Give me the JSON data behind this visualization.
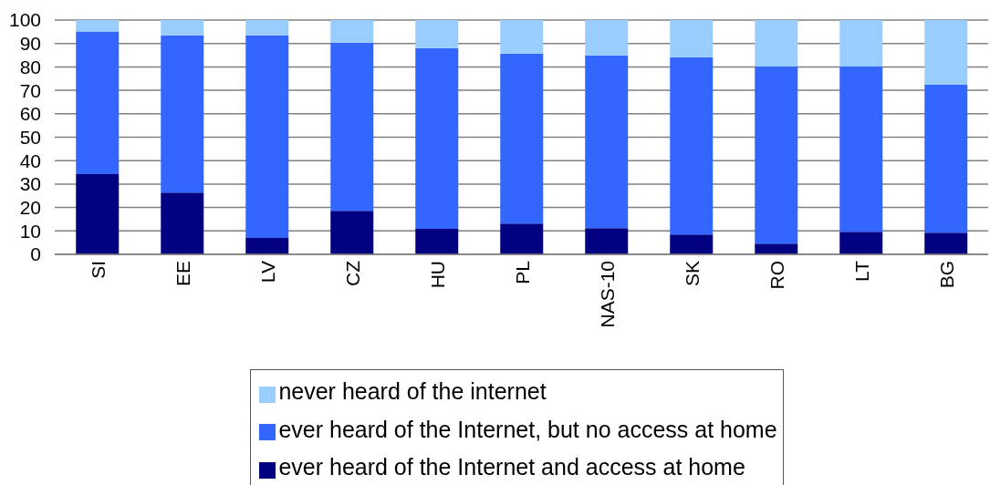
{
  "chart_data": {
    "type": "bar",
    "stacked": true,
    "categories": [
      "SI",
      "EE",
      "LV",
      "CZ",
      "HU",
      "PL",
      "NAS-10",
      "SK",
      "RO",
      "LT",
      "BG"
    ],
    "series": [
      {
        "name": "ever heard of the Internet and access at home",
        "color": "#000080",
        "values": [
          34.2,
          26.4,
          7.0,
          18.6,
          10.9,
          13.1,
          11.2,
          8.5,
          4.6,
          9.6,
          9.2
        ]
      },
      {
        "name": "ever heard of the Internet, but no access at home",
        "color": "#3366ff",
        "values": [
          60.9,
          67.1,
          86.5,
          71.8,
          77.1,
          72.6,
          73.7,
          75.6,
          75.6,
          70.6,
          63.2
        ]
      },
      {
        "name": "never heard of the internet",
        "color": "#99ccff",
        "values": [
          4.9,
          6.5,
          6.5,
          9.6,
          12.0,
          14.3,
          15.1,
          15.9,
          19.8,
          19.8,
          27.6
        ]
      }
    ],
    "ylim": [
      0,
      100
    ],
    "yticks": [
      0,
      10,
      20,
      30,
      40,
      50,
      60,
      70,
      80,
      90,
      100
    ],
    "grid": "y",
    "legend": "bottom"
  }
}
